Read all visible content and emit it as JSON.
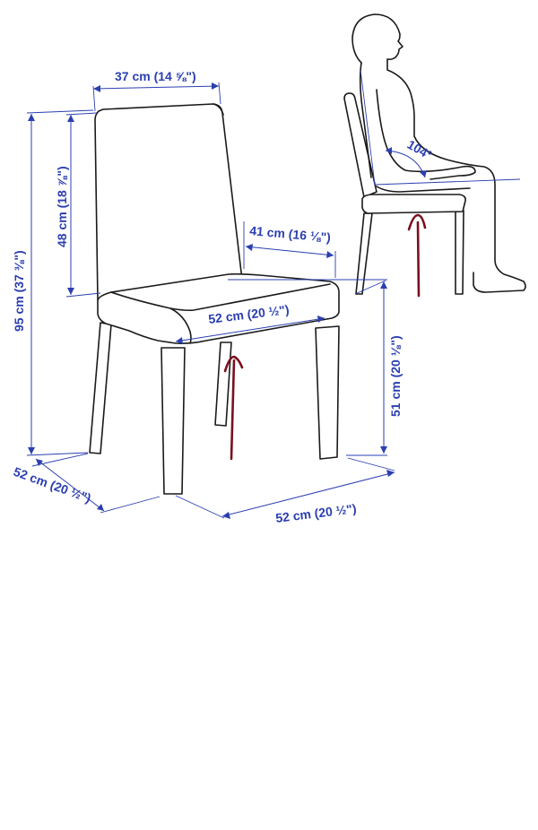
{
  "dimensions": {
    "back_width": "37 cm (14 ⅝\")",
    "back_height": "48 cm (18 ⅞\")",
    "total_height": "95 cm (37 ⅜\")",
    "seat_depth": "41 cm (16 ⅛\")",
    "seat_width": "52 cm (20 ½\")",
    "seat_height": "51 cm (20 ⅛\")",
    "depth": "52 cm (20 ½\")",
    "width": "52 cm (20 ½\")",
    "recline_angle": "104°"
  },
  "colors": {
    "dimension_lines": "#2b3fb0",
    "outline": "#1a1a1a",
    "annotation_marks": "#7a1020"
  },
  "icons": {
    "chair": "chair-outline",
    "person": "seated-person-outline",
    "annotation": "hand-drawn-up-arrow"
  }
}
